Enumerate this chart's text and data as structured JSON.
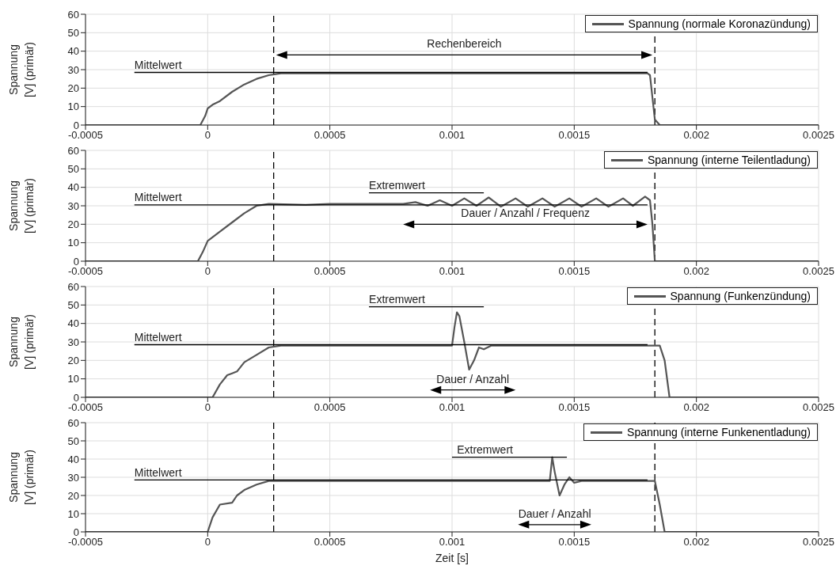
{
  "chart_data": [
    {
      "type": "line",
      "ylabel": "Spannung [V] (primär)",
      "xlim": [
        -0.0005,
        0.0025
      ],
      "xticks": [
        -0.0005,
        0,
        0.0005,
        0.001,
        0.0015,
        0.002,
        0.0025
      ],
      "ylim": [
        0,
        60
      ],
      "yticks": [
        0,
        10,
        20,
        30,
        40,
        50,
        60
      ],
      "grid": true,
      "legend": "top right",
      "series": [
        {
          "name": "Spannung (normale Koronazündung)",
          "color": "#555555",
          "marker": "none",
          "x": [
            -0.0005,
            -3e-05,
            -1e-05,
            0,
            2e-05,
            5e-05,
            0.0001,
            0.00015,
            0.0002,
            0.00025,
            0.0003,
            0.0005,
            0.001,
            0.0015,
            0.0018,
            0.00181,
            0.00182,
            0.00183,
            0.00185,
            0.0025
          ],
          "values": [
            0,
            0,
            5,
            9,
            11,
            13,
            18,
            22,
            25,
            27,
            28,
            28,
            28,
            28,
            28,
            27,
            15,
            3,
            0,
            0
          ]
        },
        {
          "color": "#000000",
          "marker": "none",
          "x": [
            -0.0003,
            0.0018
          ],
          "values": [
            28.5,
            28.5
          ]
        }
      ],
      "ref_lines": [
        {
          "axis": "x",
          "value": 0.00027,
          "color": "#000000",
          "line_style": "dashed"
        },
        {
          "axis": "x",
          "value": 0.00183,
          "color": "#000000",
          "line_style": "dashed"
        }
      ],
      "annotations": [
        {
          "text": "Mittelwert",
          "x": -0.0003,
          "y": 30.5
        },
        "Rechenbereich"
      ]
    },
    {
      "type": "line",
      "ylabel": "Spannung [V] (primär)",
      "xlim": [
        -0.0005,
        0.0025
      ],
      "xticks": [
        -0.0005,
        0,
        0.0005,
        0.001,
        0.0015,
        0.002,
        0.0025
      ],
      "ylim": [
        0,
        60
      ],
      "yticks": [
        0,
        10,
        20,
        30,
        40,
        50,
        60
      ],
      "grid": true,
      "legend": "top right",
      "series": [
        {
          "name": "Spannung (interne Teilentladung)",
          "color": "#555555",
          "marker": "none",
          "x": [
            -0.0005,
            -4e-05,
            -2e-05,
            0,
            5e-05,
            0.0001,
            0.00015,
            0.0002,
            0.00025,
            0.0004,
            0.0005,
            0.0006,
            0.0007,
            0.0008,
            0.00085,
            0.0009,
            0.00095,
            0.001,
            0.00105,
            0.0011,
            0.00115,
            0.0012,
            0.00126,
            0.00131,
            0.00137,
            0.00142,
            0.00148,
            0.00153,
            0.00159,
            0.00164,
            0.0017,
            0.00174,
            0.00179,
            0.00181,
            0.00182,
            0.00183,
            0.0025
          ],
          "values": [
            0,
            0,
            5,
            11,
            16,
            21,
            26,
            30,
            31,
            30.5,
            31,
            31,
            31,
            31,
            32,
            30,
            33,
            30,
            34,
            30,
            34.5,
            29.5,
            34,
            29.5,
            34,
            29.5,
            34,
            29.5,
            34,
            29.5,
            34,
            30,
            35,
            33,
            20,
            0,
            0
          ]
        },
        {
          "color": "#000000",
          "marker": "none",
          "x": [
            -0.0003,
            0.0018
          ],
          "values": [
            30.5,
            30.5
          ]
        },
        {
          "color": "#000000",
          "marker": "none",
          "x": [
            0.00066,
            0.00113
          ],
          "values": [
            37,
            37
          ]
        }
      ],
      "ref_lines": [
        {
          "axis": "x",
          "value": 0.00027,
          "color": "#000000",
          "line_style": "dashed"
        },
        {
          "axis": "x",
          "value": 0.00183,
          "color": "#000000",
          "line_style": "dashed"
        }
      ],
      "annotations": [
        {
          "text": "Mittelwert",
          "x": -0.0003,
          "y": 32.5
        },
        {
          "text": "Extremwert",
          "x": 0.00066,
          "y": 39
        },
        "Dauer / Anzahl / Frequenz"
      ]
    },
    {
      "type": "line",
      "ylabel": "Spannung [V] (primär)",
      "xlim": [
        -0.0005,
        0.0025
      ],
      "xticks": [
        -0.0005,
        0,
        0.0005,
        0.001,
        0.0015,
        0.002,
        0.0025
      ],
      "ylim": [
        0,
        60
      ],
      "yticks": [
        0,
        10,
        20,
        30,
        40,
        50,
        60
      ],
      "grid": true,
      "legend": "top right",
      "series": [
        {
          "name": "Spannung (Funkenzündung)",
          "color": "#555555",
          "marker": "none",
          "x": [
            -0.0005,
            2e-05,
            5e-05,
            8e-05,
            0.0001,
            0.00012,
            0.00015,
            0.0002,
            0.00025,
            0.0003,
            0.001,
            0.00101,
            0.00102,
            0.00103,
            0.00105,
            0.00107,
            0.00109,
            0.00111,
            0.00113,
            0.00116,
            0.00185,
            0.00187,
            0.00189,
            0.0025
          ],
          "values": [
            0,
            0,
            7,
            12,
            13,
            14,
            19,
            23,
            27,
            28,
            28,
            38,
            46,
            44,
            30,
            15,
            20,
            27,
            26,
            28,
            28,
            20,
            0,
            0
          ]
        },
        {
          "color": "#000000",
          "marker": "none",
          "x": [
            -0.0003,
            0.0018
          ],
          "values": [
            28.5,
            28.5
          ]
        },
        {
          "color": "#000000",
          "marker": "none",
          "x": [
            0.00066,
            0.00113
          ],
          "values": [
            49,
            49
          ]
        }
      ],
      "ref_lines": [
        {
          "axis": "x",
          "value": 0.00027,
          "color": "#000000",
          "line_style": "dashed"
        },
        {
          "axis": "x",
          "value": 0.00183,
          "color": "#000000",
          "line_style": "dashed"
        }
      ],
      "annotations": [
        {
          "text": "Mittelwert",
          "x": -0.0003,
          "y": 30.5
        },
        {
          "text": "Extremwert",
          "x": 0.00066,
          "y": 51
        },
        "Dauer / Anzahl"
      ]
    },
    {
      "type": "line",
      "ylabel": "Spannung [V] (primär)",
      "xlabel": "Zeit [s]",
      "xlim": [
        -0.0005,
        0.0025
      ],
      "xticks": [
        -0.0005,
        0,
        0.0005,
        0.001,
        0.0015,
        0.002,
        0.0025
      ],
      "ylim": [
        0,
        60
      ],
      "yticks": [
        0,
        10,
        20,
        30,
        40,
        50,
        60
      ],
      "grid": true,
      "legend": "top right",
      "series": [
        {
          "name": "Spannung (interne Funkenentladung)",
          "color": "#555555",
          "marker": "none",
          "x": [
            -0.0005,
            0,
            2e-05,
            5e-05,
            0.0001,
            0.00012,
            0.00015,
            0.0002,
            0.00025,
            0.0014,
            0.00141,
            0.00142,
            0.00144,
            0.00146,
            0.00148,
            0.0015,
            0.00153,
            0.00183,
            0.00185,
            0.00187,
            0.0025
          ],
          "values": [
            0,
            0,
            8,
            15,
            16,
            20,
            23,
            26,
            28,
            28,
            41,
            33,
            20,
            26,
            30,
            27,
            28,
            28,
            15,
            0,
            0
          ]
        },
        {
          "color": "#000000",
          "marker": "none",
          "x": [
            -0.0003,
            0.0018
          ],
          "values": [
            28.5,
            28.5
          ]
        },
        {
          "color": "#000000",
          "marker": "none",
          "x": [
            0.001,
            0.00147
          ],
          "values": [
            41,
            41
          ]
        }
      ],
      "ref_lines": [
        {
          "axis": "x",
          "value": 0.00027,
          "color": "#000000",
          "line_style": "dashed"
        },
        {
          "axis": "x",
          "value": 0.00183,
          "color": "#000000",
          "line_style": "dashed"
        }
      ],
      "annotations": [
        {
          "text": "Mittelwert",
          "x": -0.0003,
          "y": 30.5
        },
        {
          "text": "Extremwert",
          "x": 0.00102,
          "y": 43
        },
        "Dauer / Anzahl"
      ]
    }
  ]
}
